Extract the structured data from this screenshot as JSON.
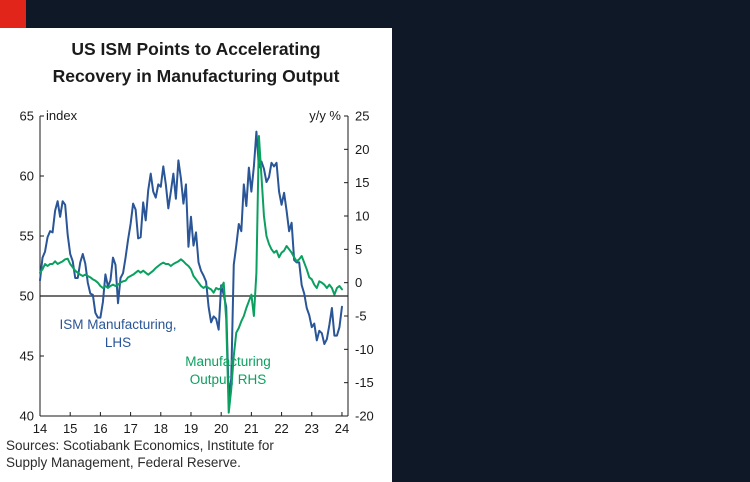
{
  "title": {
    "line1": "US ISM Points to Accelerating",
    "line2": "Recovery in Manufacturing Output"
  },
  "annotations": {
    "ism": {
      "line1": "ISM Manufacturing,",
      "line2": "LHS"
    },
    "output": {
      "line1": "Manufacturing",
      "line2": "Output, RHS"
    }
  },
  "sources": {
    "line1": "Sources: Scotiabank Economics, Institute for",
    "line2": "Supply Management, Federal Reserve."
  },
  "colors": {
    "background_dark": "#0f1827",
    "accent_red": "#e1251b",
    "ism_blue": "#2a5596",
    "output_green": "#0ba05f",
    "axis_black": "#1a1a1a"
  },
  "chart_data": {
    "type": "line",
    "title": "US ISM Points to Accelerating Recovery in Manufacturing Output",
    "x_domain": [
      2014,
      2024.2
    ],
    "x_tick_years": [
      2014,
      2015,
      2016,
      2017,
      2018,
      2019,
      2020,
      2021,
      2022,
      2023,
      2024
    ],
    "x_tick_labels": [
      "14",
      "15",
      "16",
      "17",
      "18",
      "19",
      "20",
      "21",
      "22",
      "23",
      "24"
    ],
    "left_axis": {
      "label": "index",
      "min": 40,
      "max": 65,
      "ticks": [
        40,
        45,
        50,
        55,
        60,
        65
      ]
    },
    "right_axis": {
      "label": "y/y %",
      "min": -20,
      "max": 25,
      "ticks": [
        -20,
        -15,
        -10,
        -5,
        0,
        5,
        10,
        15,
        20,
        25
      ]
    },
    "reference_line_left": 50,
    "frequency": "monthly",
    "start": "2014-01",
    "series": [
      {
        "name": "ISM Manufacturing, LHS",
        "axis": "left",
        "color": "#2a5596",
        "values": [
          51.3,
          53.2,
          53.7,
          54.9,
          55.4,
          55.3,
          57.1,
          57.9,
          56.6,
          57.9,
          57.6,
          55.1,
          53.5,
          52.9,
          51.5,
          51.5,
          52.8,
          53.5,
          52.7,
          51.1,
          50.2,
          50.1,
          48.6,
          48.2,
          48.2,
          49.5,
          51.8,
          50.8,
          51.3,
          53.2,
          52.6,
          49.4,
          51.5,
          51.9,
          53.2,
          54.7,
          56.0,
          57.7,
          57.2,
          54.8,
          54.9,
          57.8,
          56.3,
          58.8,
          60.2,
          58.7,
          58.2,
          59.3,
          59.1,
          60.8,
          59.3,
          57.3,
          58.7,
          60.2,
          58.1,
          61.3,
          59.8,
          57.7,
          59.3,
          54.1,
          56.6,
          54.2,
          55.3,
          52.8,
          52.1,
          51.7,
          51.2,
          49.1,
          47.8,
          48.3,
          48.1,
          47.2,
          50.9,
          50.1,
          49.1,
          41.5,
          43.1,
          52.6,
          54.2,
          56.0,
          55.4,
          59.3,
          57.5,
          60.7,
          58.7,
          60.8,
          63.7,
          60.7,
          61.2,
          60.6,
          59.5,
          59.9,
          61.1,
          60.8,
          61.1,
          58.7,
          57.6,
          58.6,
          57.1,
          55.4,
          56.1,
          53.0,
          52.8,
          52.8,
          50.9,
          50.2,
          49.0,
          48.4,
          47.4,
          47.7,
          46.3,
          47.1,
          46.9,
          46.0,
          46.4,
          47.6,
          49.0,
          46.7,
          46.7,
          47.4,
          49.1
        ]
      },
      {
        "name": "Manufacturing Output, RHS",
        "axis": "right",
        "color": "#0ba05f",
        "values": [
          1.5,
          2.0,
          2.8,
          2.5,
          2.8,
          2.8,
          3.2,
          2.8,
          3.0,
          3.2,
          3.5,
          3.6,
          2.8,
          2.3,
          1.8,
          1.5,
          1.2,
          1.0,
          1.2,
          1.0,
          0.8,
          0.5,
          0.3,
          0.0,
          -0.5,
          -0.8,
          -0.5,
          -0.8,
          -0.5,
          -0.3,
          -0.5,
          -0.3,
          0.0,
          0.2,
          0.3,
          0.8,
          1.0,
          1.2,
          1.5,
          1.8,
          1.5,
          1.8,
          1.5,
          1.2,
          1.5,
          1.8,
          2.2,
          2.5,
          2.8,
          3.0,
          2.8,
          2.8,
          2.5,
          2.8,
          3.0,
          3.2,
          3.5,
          3.2,
          2.8,
          2.5,
          2.0,
          1.0,
          0.5,
          0.0,
          -0.5,
          -0.8,
          -0.5,
          -0.8,
          -1.0,
          -1.5,
          -0.8,
          -1.0,
          -0.8,
          0.0,
          -5.5,
          -19.5,
          -16.0,
          -11.0,
          -7.5,
          -6.8,
          -5.8,
          -5.0,
          -3.8,
          -2.8,
          -1.8,
          -5.0,
          1.5,
          22.0,
          16.0,
          10.0,
          7.0,
          5.8,
          5.0,
          4.5,
          4.8,
          3.8,
          4.5,
          4.8,
          5.5,
          5.0,
          4.5,
          3.8,
          3.2,
          3.5,
          4.0,
          3.0,
          2.0,
          0.8,
          0.5,
          -0.3,
          -0.8,
          0.2,
          0.0,
          -0.3,
          -0.8,
          -0.3,
          -0.8,
          -1.8,
          -0.8,
          -0.5,
          -1.0
        ]
      }
    ]
  }
}
